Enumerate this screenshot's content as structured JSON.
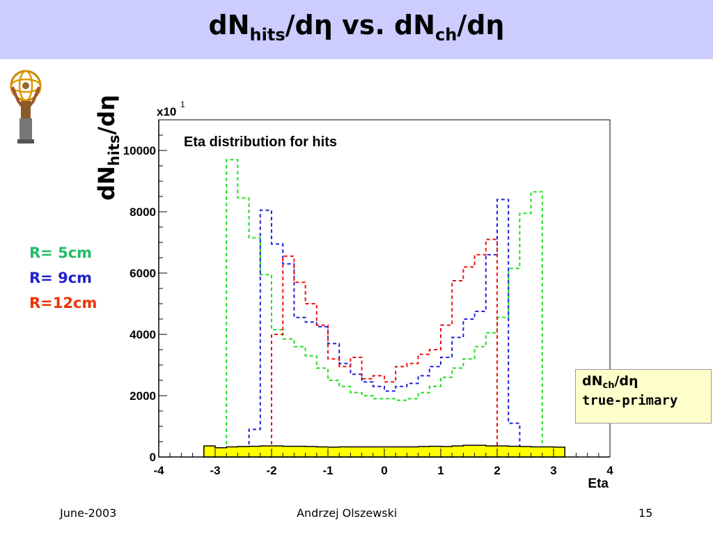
{
  "slide": {
    "title_main": "dN",
    "title_sub1": "hits",
    "title_mid": "/dη  vs. dN",
    "title_sub2": "ch",
    "title_end": "/dη"
  },
  "y_axis_title": {
    "main": "dN",
    "sub": "hits",
    "end": "/dη"
  },
  "legend": [
    {
      "label": "R= 5cm",
      "color": "#22bb66"
    },
    {
      "label": "R= 9cm",
      "color": "#2222cc"
    },
    {
      "label": "R=12cm",
      "color": "#ee3300"
    }
  ],
  "callout": {
    "line1_main": "dN",
    "line1_sub": "ch",
    "line1_end": "/dη",
    "line2": "true-primary"
  },
  "footer": {
    "date": "June-2003",
    "author": "Andrzej Olszewski",
    "page": "15"
  },
  "chart_data": {
    "type": "line",
    "title": "Eta distribution for hits",
    "xlabel": "Eta",
    "ylabel": "",
    "y_multiplier": "x10",
    "y_multiplier_exp": "1",
    "xlim": [
      -4,
      4
    ],
    "ylim": [
      0,
      11000
    ],
    "x_ticks": [
      -4,
      -3,
      -2,
      -1,
      0,
      1,
      2,
      3,
      4
    ],
    "x_tick_labels": [
      "-4",
      "-3",
      "-2",
      "-1",
      "0",
      "1",
      "2",
      "3",
      "4"
    ],
    "y_ticks": [
      0,
      2000,
      4000,
      6000,
      8000,
      10000
    ],
    "y_tick_labels": [
      "0",
      "2000",
      "4000",
      "6000",
      "8000",
      "10000"
    ],
    "bin_edges": [
      -3.2,
      -3.0,
      -2.8,
      -2.6,
      -2.4,
      -2.2,
      -2.0,
      -1.8,
      -1.6,
      -1.4,
      -1.2,
      -1.0,
      -0.8,
      -0.6,
      -0.4,
      -0.2,
      0.0,
      0.2,
      0.4,
      0.6,
      0.8,
      1.0,
      1.2,
      1.4,
      1.6,
      1.8,
      2.0,
      2.2,
      2.4,
      2.6,
      2.8,
      3.0,
      3.2
    ],
    "series": [
      {
        "color": "#22dd22",
        "style": "dashed",
        "x_range": [
          -2.8,
          2.8
        ],
        "values": [
          9700,
          8450,
          7150,
          5950,
          4150,
          3850,
          3600,
          3300,
          2900,
          2500,
          2300,
          2100,
          2000,
          1900,
          1900,
          1850,
          1900,
          2100,
          2300,
          2600,
          2900,
          3200,
          3600,
          4050,
          4550,
          6150,
          7950,
          8650
        ]
      },
      {
        "color": "#2222dd",
        "style": "dashed",
        "x_range": [
          -2.4,
          2.4
        ],
        "values": [
          900,
          8050,
          6950,
          6300,
          4550,
          4400,
          4250,
          3700,
          3050,
          2700,
          2450,
          2300,
          2150,
          2300,
          2400,
          2650,
          2950,
          3250,
          3900,
          4500,
          4750,
          6600,
          8400,
          1100
        ]
      },
      {
        "color": "#ee1111",
        "style": "dashed",
        "x_range": [
          -2.0,
          2.0
        ],
        "values": [
          4000,
          6550,
          5700,
          5000,
          4300,
          3200,
          2950,
          3250,
          2550,
          2650,
          2450,
          2950,
          3050,
          3350,
          3500,
          4300,
          5750,
          6200,
          6600,
          7100
        ]
      },
      {
        "color": "#ffff00",
        "style": "filled",
        "x_range": [
          -3.2,
          3.2
        ],
        "values": [
          360,
          300,
          330,
          340,
          350,
          360,
          360,
          350,
          350,
          340,
          330,
          320,
          330,
          330,
          330,
          330,
          330,
          330,
          330,
          340,
          350,
          340,
          360,
          380,
          380,
          360,
          360,
          350,
          340,
          330,
          330,
          320
        ]
      }
    ]
  }
}
